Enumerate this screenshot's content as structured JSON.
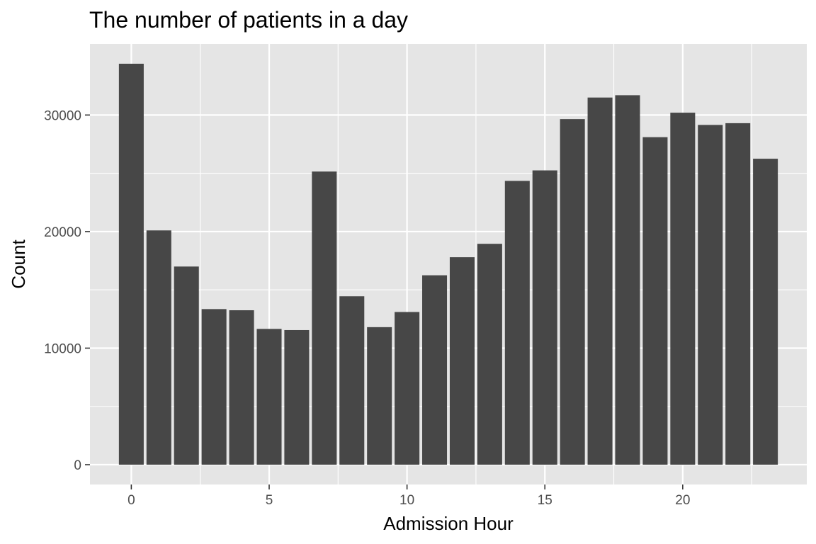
{
  "chart_data": {
    "type": "bar",
    "title": "The number of patients in a day",
    "xlabel": "Admission Hour",
    "ylabel": "Count",
    "x": [
      0,
      1,
      2,
      3,
      4,
      5,
      6,
      7,
      8,
      9,
      10,
      11,
      12,
      13,
      14,
      15,
      16,
      17,
      18,
      19,
      20,
      21,
      22,
      23
    ],
    "values": [
      34400,
      20100,
      17000,
      13350,
      13250,
      11650,
      11550,
      25150,
      14450,
      11800,
      13100,
      16250,
      17800,
      18950,
      24350,
      25250,
      29650,
      31500,
      31700,
      28100,
      30200,
      29150,
      29300,
      26250
    ],
    "xlim": [
      -1.5,
      24.5
    ],
    "ylim": [
      -1700,
      36100
    ],
    "x_ticks": [
      0,
      5,
      10,
      15,
      20
    ],
    "x_tick_labels": [
      "0",
      "5",
      "10",
      "15",
      "20"
    ],
    "y_ticks": [
      0,
      10000,
      20000,
      30000
    ],
    "y_tick_labels": [
      "0",
      "10000",
      "20000",
      "30000"
    ],
    "grid": true,
    "legend": "none",
    "colors": {
      "bar": "#474747",
      "panel": "#e5e5e5",
      "grid": "#ffffff",
      "tick_text": "#4d4d4d",
      "axis_ticks": "#333333"
    }
  }
}
